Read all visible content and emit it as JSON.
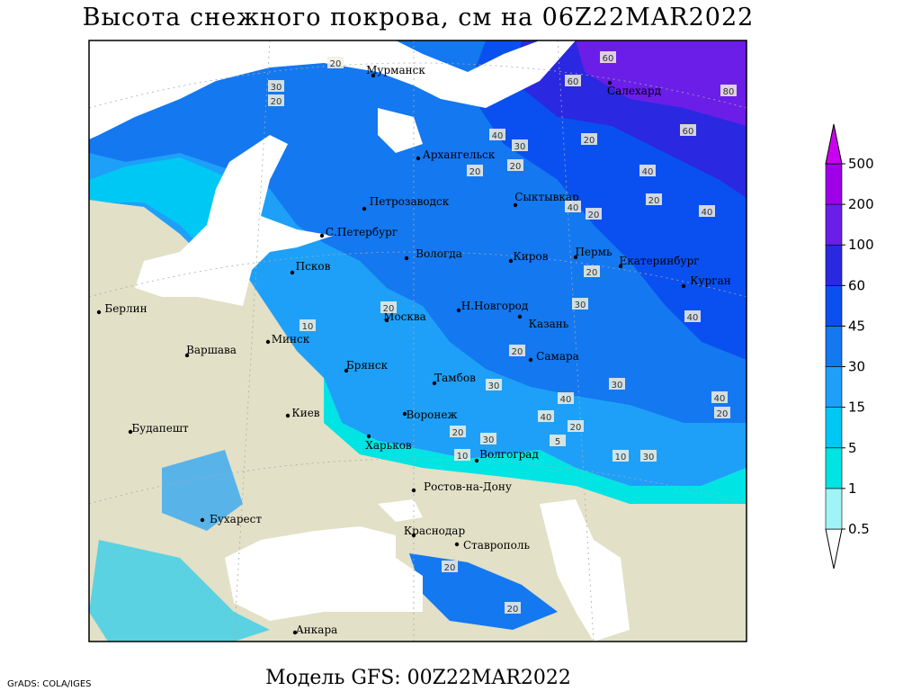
{
  "title": "Высота снежного покрова, см на 06Z22MAR2022",
  "footer": "Модель GFS: 00Z22MAR2022",
  "credit": "GrADS: COLA/IGES",
  "cities": [
    "Мурманск",
    "Салехард",
    "Архангельск",
    "Петрозаводск",
    "Сыктывкар",
    "С.Петербург",
    "Вологда",
    "Киров",
    "Пермь",
    "Екатеринбург",
    "Курган",
    "Псков",
    "Берлин",
    "Н.Новгород",
    "Москва",
    "Казань",
    "Минск",
    "Варшава",
    "Самара",
    "Брянск",
    "Тамбов",
    "Киев",
    "Воронеж",
    "Будапешт",
    "Харьков",
    "Волгоград",
    "Ростов-на-Дону",
    "Бухарест",
    "Краснодар",
    "Ставрополь",
    "Анкара"
  ],
  "contour_labels": [
    20,
    30,
    20,
    60,
    60,
    80,
    60,
    20,
    40,
    30,
    20,
    20,
    40,
    40,
    20,
    20,
    40,
    20,
    30,
    10,
    20,
    40,
    20,
    30,
    40,
    40,
    30,
    40,
    20,
    10,
    30,
    20,
    10,
    30,
    20,
    20,
    20,
    5
  ],
  "legend": {
    "levels": [
      0.5,
      1,
      5,
      15,
      30,
      45,
      60,
      100,
      200,
      500
    ],
    "colors": [
      "#ffffff",
      "#a0f4f8",
      "#00e4e4",
      "#00c8f4",
      "#1ea0f8",
      "#1478f0",
      "#0a50f0",
      "#2a28e0",
      "#6a1ee8",
      "#a000e8",
      "#cc00f0"
    ]
  }
}
